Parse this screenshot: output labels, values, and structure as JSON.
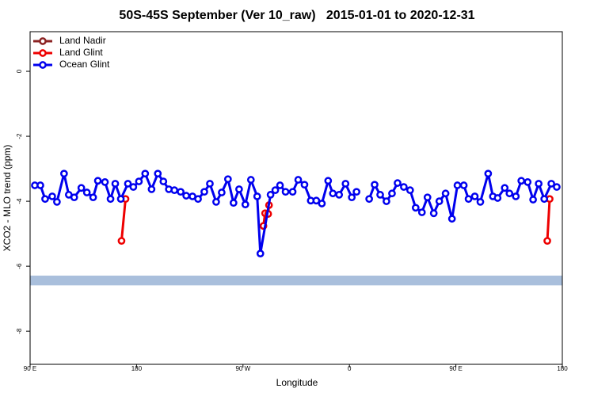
{
  "chart_data": {
    "type": "line",
    "title": "50S-45S September (Ver 10_raw)   2015-01-01 to 2020-12-31",
    "x_label": "Longitude",
    "y_label": "XCO2 - MLO trend (ppm)",
    "xlim": [
      90,
      540
    ],
    "ylim": [
      -9.02,
      1.22
    ],
    "xticks": [
      {
        "value": 90,
        "label": "90 E"
      },
      180,
      {
        "value": 270,
        "label": "90 W"
      },
      {
        "value": 360,
        "label": "0"
      },
      {
        "value": 450,
        "label": "90 E"
      },
      {
        "value": 540,
        "label": "180"
      }
    ],
    "yticks": [
      0,
      -2,
      -4,
      -6,
      -8
    ],
    "band": {
      "color": "#a9bfdc",
      "range": [
        -6.59,
        -6.29
      ]
    },
    "legend": "top-left",
    "series": [
      {
        "name": "Land Nadir",
        "color": "#8b2323",
        "x": [],
        "values": []
      },
      {
        "name": "Land Glint",
        "color": "#ee0000",
        "x": [
          167.3,
          170.7,
          null,
          287.3,
          288.7,
          291.3,
          292,
          null,
          527.3,
          529.3
        ],
        "values": [
          -5.22,
          -3.93,
          null,
          -4.76,
          -4.37,
          -4.39,
          -4.12,
          null,
          -5.22,
          -3.93
        ]
      },
      {
        "name": "Ocean Glint",
        "color": "#0000ee",
        "x": [
          94,
          98.7,
          102.7,
          108.7,
          112.7,
          118.7,
          122.7,
          127.3,
          133.3,
          138,
          143.3,
          147.3,
          153.3,
          158,
          162,
          166.7,
          172.7,
          177.3,
          182,
          187.3,
          192.7,
          198,
          202.7,
          207.3,
          212,
          217.3,
          222,
          227.3,
          232,
          237.3,
          242,
          247.3,
          252,
          257.3,
          262,
          266.7,
          272,
          276.7,
          282,
          284.7,
          293.3,
          297.3,
          301.3,
          306,
          312,
          316.7,
          322,
          327.3,
          332,
          336.7,
          342,
          346,
          351.3,
          356.7,
          362,
          366,
          null,
          376.7,
          381.3,
          386,
          391.3,
          396,
          400.7,
          406,
          411.3,
          416,
          421.3,
          426,
          431.3,
          436,
          441.3,
          446.7,
          451.3,
          456.7,
          460.7,
          466,
          470.7,
          477.3,
          481.3,
          485.3,
          491.3,
          495.3,
          500.7,
          505.3,
          510.7,
          515.3,
          520,
          524.7,
          530.7,
          535.3
        ],
        "values": [
          -3.51,
          -3.51,
          -3.93,
          -3.85,
          -4.02,
          -3.15,
          -3.8,
          -3.88,
          -3.59,
          -3.73,
          -3.88,
          -3.37,
          -3.41,
          -3.93,
          -3.46,
          -3.93,
          -3.46,
          -3.56,
          -3.39,
          -3.15,
          -3.63,
          -3.15,
          -3.39,
          -3.63,
          -3.66,
          -3.71,
          -3.83,
          -3.85,
          -3.93,
          -3.71,
          -3.46,
          -4.02,
          -3.73,
          -3.32,
          -4.05,
          -3.63,
          -4.1,
          -3.34,
          -3.85,
          -5.61,
          -3.8,
          -3.66,
          -3.51,
          -3.71,
          -3.71,
          -3.34,
          -3.49,
          -3.98,
          -3.98,
          -4.07,
          -3.37,
          -3.76,
          -3.8,
          -3.46,
          -3.88,
          -3.71,
          null,
          -3.93,
          -3.49,
          -3.8,
          -4.0,
          -3.76,
          -3.44,
          -3.56,
          -3.66,
          -4.2,
          -4.34,
          -3.88,
          -4.37,
          -4.0,
          -3.76,
          -4.54,
          -3.51,
          -3.51,
          -3.93,
          -3.85,
          -4.02,
          -3.15,
          -3.85,
          -3.9,
          -3.59,
          -3.76,
          -3.85,
          -3.37,
          -3.41,
          -3.95,
          -3.46,
          -3.93,
          -3.46,
          -3.56
        ]
      }
    ]
  }
}
